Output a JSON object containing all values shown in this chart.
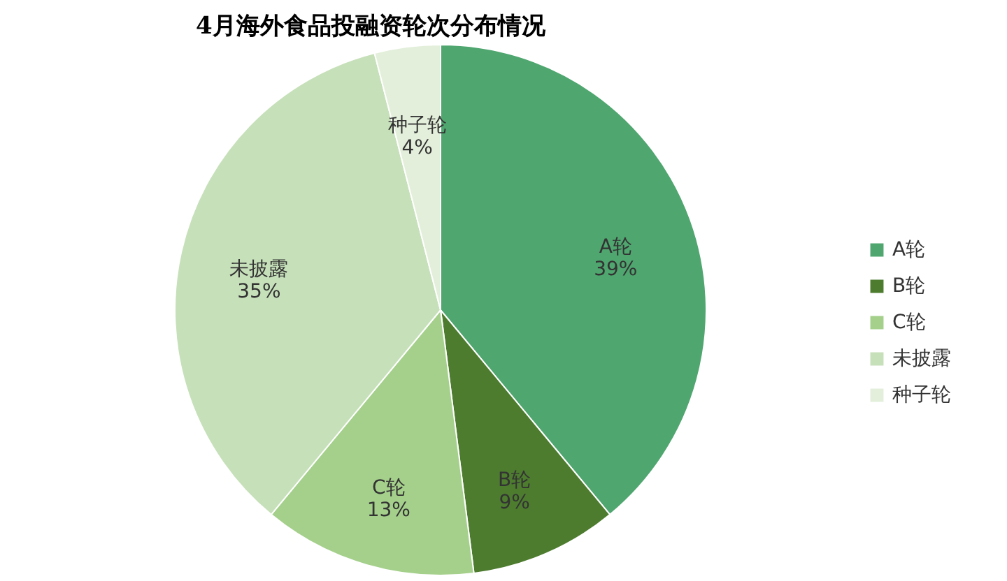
{
  "chart_data": {
    "type": "pie",
    "title": "4月海外食品投融资轮次分布情况",
    "categories": [
      "A轮",
      "B轮",
      "C轮",
      "未披露",
      "种子轮"
    ],
    "values": [
      39,
      9,
      13,
      35,
      4
    ],
    "value_labels": [
      "39%",
      "9%",
      "13%",
      "35%",
      "4%"
    ],
    "colors": [
      "#4fa66f",
      "#4d7c2f",
      "#a5d08c",
      "#c6e0b9",
      "#e3efda"
    ],
    "legend": "right"
  }
}
